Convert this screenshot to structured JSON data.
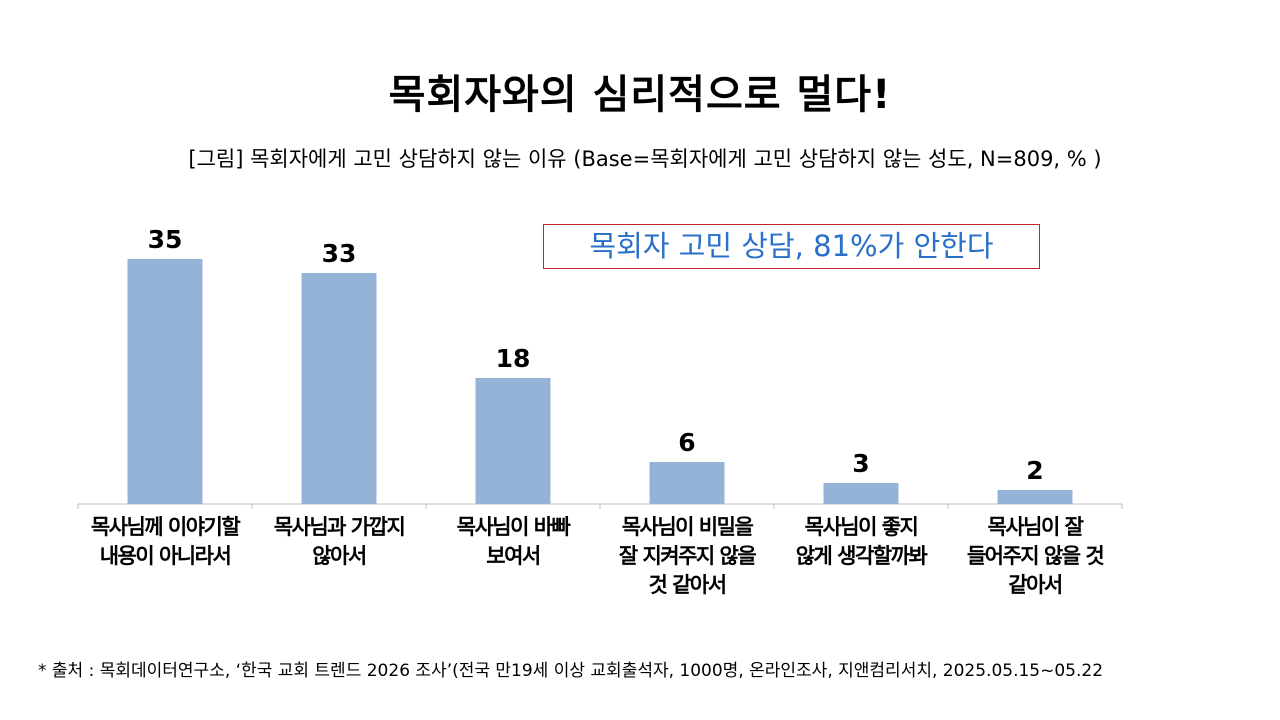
{
  "title": "목회자와의 심리적으로 멀다!",
  "subtitle": "[그림] 목회자에게 고민 상담하지 않는 이유 (Base=목회자에게 고민 상담하지 않는 성도, N=809, % )",
  "callout": "목회자 고민 상담, 81%가 안한다",
  "footnote": "* 출처 : 목회데이터연구소, ‘한국 교회 트렌드 2026 조사’(전국 만19세 이상 교회출석자, 1000명, 온라인조사, 지앤컴리서치, 2025.05.15~05.22",
  "chart_data": {
    "type": "bar",
    "categories": [
      [
        "목사님께 이야기할",
        "내용이 아니라서"
      ],
      [
        "목사님과 가깝지",
        "않아서"
      ],
      [
        "목사님이 바빠",
        "보여서"
      ],
      [
        "목사님이 비밀을",
        "잘 지켜주지 않을",
        "것 같아서"
      ],
      [
        "목사님이 좋지",
        "않게 생각할까봐"
      ],
      [
        "목사님이 잘",
        "들어주지 않을 것",
        "같아서"
      ]
    ],
    "values": [
      35,
      33,
      18,
      6,
      3,
      2
    ],
    "ylim": [
      0,
      40
    ],
    "bar_color": "#95b3d7",
    "axis_color": "#bfbfbf"
  }
}
